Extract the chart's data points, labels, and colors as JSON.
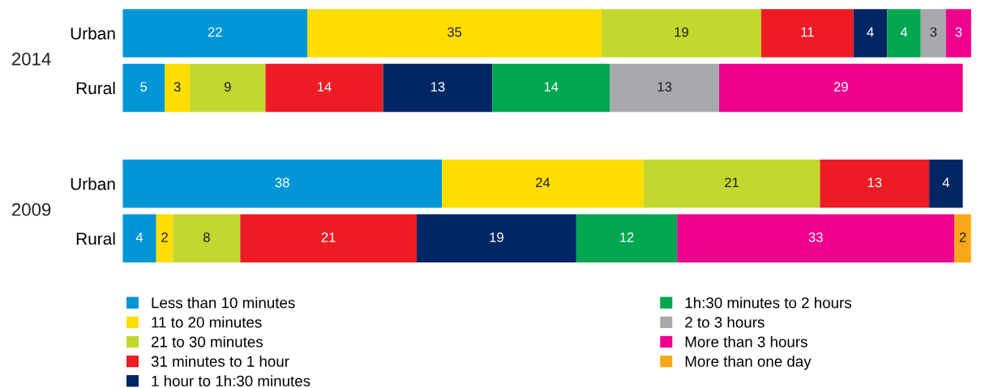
{
  "chart_data": {
    "type": "bar",
    "orientation": "horizontal",
    "stacked": true,
    "data_labels": true,
    "legend": "bottom",
    "grid": false,
    "tick_labels": "y",
    "xlim": [
      0,
      101
    ],
    "categories": [
      "Urban",
      "Rural",
      "Urban",
      "Rural"
    ],
    "annotations": [
      "2014",
      "2009"
    ],
    "series": [
      {
        "name": "Less than 10 minutes",
        "color": "#0096d6",
        "values": [
          22,
          5,
          38,
          4
        ]
      },
      {
        "name": "11 to 20 minutes",
        "color": "#ffdd00",
        "values": [
          35,
          3,
          24,
          2
        ]
      },
      {
        "name": "21 to 30 minutes",
        "color": "#c3d82e",
        "values": [
          19,
          9,
          21,
          8
        ]
      },
      {
        "name": "31 minutes to 1 hour",
        "color": "#ed1c24",
        "values": [
          11,
          14,
          13,
          21
        ]
      },
      {
        "name": "1 hour to 1h:30 minutes",
        "color": "#002663",
        "values": [
          4,
          13,
          4,
          19
        ]
      },
      {
        "name": "1h:30 minutes to 2 hours",
        "color": "#00a650",
        "values": [
          4,
          14,
          null,
          12
        ]
      },
      {
        "name": "2 to 3 hours",
        "color": "#a7a9ac",
        "values": [
          3,
          13,
          null,
          null
        ]
      },
      {
        "name": "More than 3 hours",
        "color": "#ec008c",
        "values": [
          3,
          29,
          null,
          33
        ]
      },
      {
        "name": "More than one day",
        "color": "#f9a81a",
        "values": [
          null,
          null,
          null,
          2
        ]
      }
    ]
  }
}
